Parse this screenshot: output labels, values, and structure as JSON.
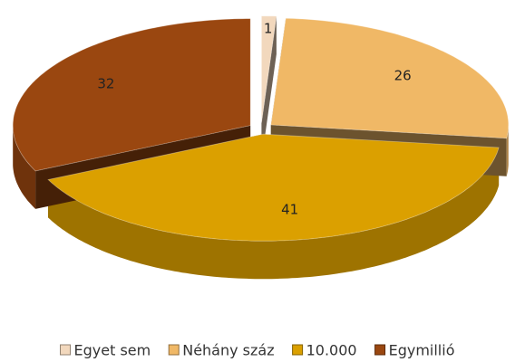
{
  "chart_data": {
    "type": "pie",
    "categories": [
      "Egyet sem",
      "Néhány száz",
      "10.000",
      "Egymillió"
    ],
    "values": [
      1,
      26,
      41,
      32
    ],
    "colors": [
      "#f2d8bd",
      "#f0b866",
      "#dba000",
      "#9a4710"
    ],
    "legend": "bottom"
  }
}
